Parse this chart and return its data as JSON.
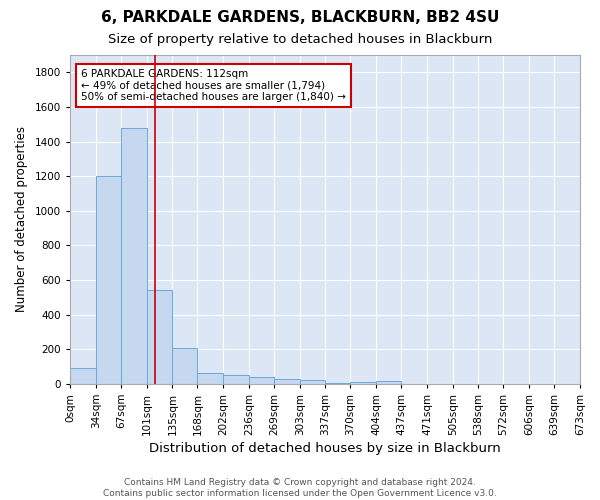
{
  "title": "6, PARKDALE GARDENS, BLACKBURN, BB2 4SU",
  "subtitle": "Size of property relative to detached houses in Blackburn",
  "xlabel": "Distribution of detached houses by size in Blackburn",
  "ylabel": "Number of detached properties",
  "bin_edges": [
    0,
    34,
    67,
    101,
    135,
    168,
    202,
    236,
    269,
    303,
    337,
    370,
    404,
    437,
    471,
    505,
    538,
    572,
    606,
    639,
    673
  ],
  "bin_labels": [
    "0sqm",
    "34sqm",
    "67sqm",
    "101sqm",
    "135sqm",
    "168sqm",
    "202sqm",
    "236sqm",
    "269sqm",
    "303sqm",
    "337sqm",
    "370sqm",
    "404sqm",
    "437sqm",
    "471sqm",
    "505sqm",
    "538sqm",
    "572sqm",
    "606sqm",
    "639sqm",
    "673sqm"
  ],
  "counts": [
    90,
    1200,
    1480,
    540,
    205,
    65,
    50,
    42,
    27,
    20,
    5,
    10,
    15,
    0,
    0,
    0,
    0,
    0,
    0,
    0
  ],
  "bar_color": "#c5d8f0",
  "bar_edge_color": "#6aaad4",
  "property_size": 112,
  "property_line_color": "#cc0000",
  "annotation_text": "6 PARKDALE GARDENS: 112sqm\n← 49% of detached houses are smaller (1,794)\n50% of semi-detached houses are larger (1,840) →",
  "annotation_box_color": "white",
  "annotation_box_edge_color": "#cc0000",
  "ylim": [
    0,
    1900
  ],
  "yticks": [
    0,
    200,
    400,
    600,
    800,
    1000,
    1200,
    1400,
    1600,
    1800
  ],
  "fig_bg_color": "#ffffff",
  "plot_bg_color": "#dce6f5",
  "grid_color": "#ffffff",
  "footer_line1": "Contains HM Land Registry data © Crown copyright and database right 2024.",
  "footer_line2": "Contains public sector information licensed under the Open Government Licence v3.0.",
  "title_fontsize": 11,
  "subtitle_fontsize": 9.5,
  "xlabel_fontsize": 9.5,
  "ylabel_fontsize": 8.5,
  "tick_fontsize": 7.5,
  "annot_fontsize": 7.5,
  "footer_fontsize": 6.5
}
